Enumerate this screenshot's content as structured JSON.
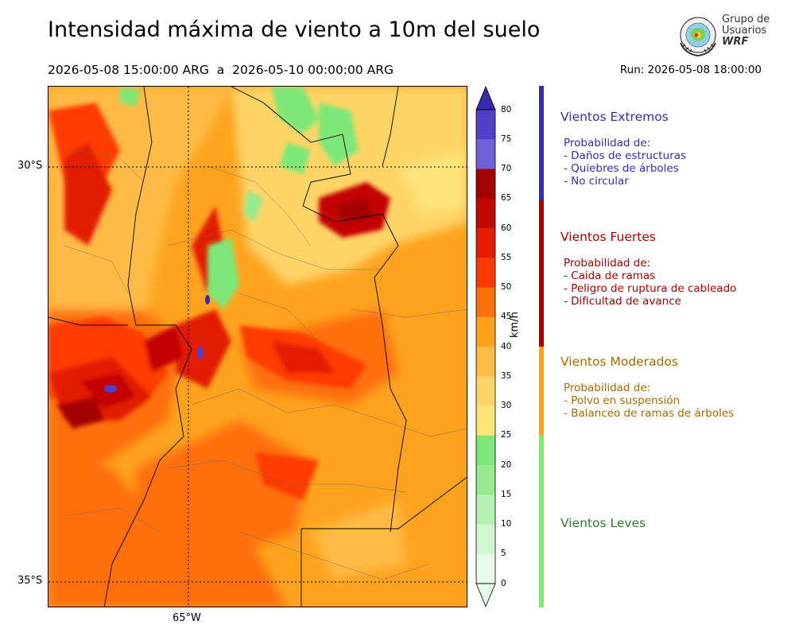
{
  "header": {
    "title": "Intensidad máxima de viento a 10m del suelo",
    "period": "2026-05-08 15:00:00 ARG  a  2026-05-10 00:00:00 ARG",
    "run": "Run: 2026-05-08 18:00:00"
  },
  "logo": {
    "line1": "Grupo de",
    "line2": "Usuarios",
    "line3": "WRF"
  },
  "map": {
    "lat_labels": [
      "30°S",
      "35°S"
    ],
    "lon_labels": [
      "65°W"
    ]
  },
  "colorbar": {
    "unit": "km/h",
    "ticks": [
      "80",
      "75",
      "70",
      "65",
      "60",
      "55",
      "50",
      "45",
      "40",
      "35",
      "30",
      "25",
      "20",
      "15",
      "10",
      "5",
      "0"
    ],
    "colors": {
      "0": "#e8fbe8",
      "5": "#d1f7d1",
      "10": "#b5f0b0",
      "15": "#97ea8f",
      "20": "#7de878",
      "25": "#ffe47a",
      "30": "#ffd466",
      "35": "#ffbb44",
      "40": "#ffa31f",
      "45": "#ff6f0a",
      "50": "#ff3a00",
      "55": "#e21d00",
      "60": "#c40600",
      "65": "#a50000",
      "70": "#7060d8",
      "75": "#5040c8",
      "80": "#3a2aaa"
    }
  },
  "categories": [
    {
      "title": "Vientos Extremos",
      "color": "#3a2aaa",
      "desc": [
        "Probabilidad de:",
        "- Daños de estructuras",
        "- Quiebres de árboles",
        "- No circular"
      ]
    },
    {
      "title": "Vientos Fuertes",
      "color": "#a50000",
      "desc": [
        "Probabilidad de:",
        "- Caida de ramas",
        "- Peligro de ruptura de cableado",
        "- Dificultad de avance"
      ]
    },
    {
      "title": "Vientos Moderados",
      "color": "#a86a00",
      "desc": [
        "Probabilidad de:",
        "- Polvo en suspensión",
        "- Balanceo de ramas de árboles"
      ]
    },
    {
      "title": "Vientos Leves",
      "color": "#2e7d32",
      "desc": []
    }
  ]
}
